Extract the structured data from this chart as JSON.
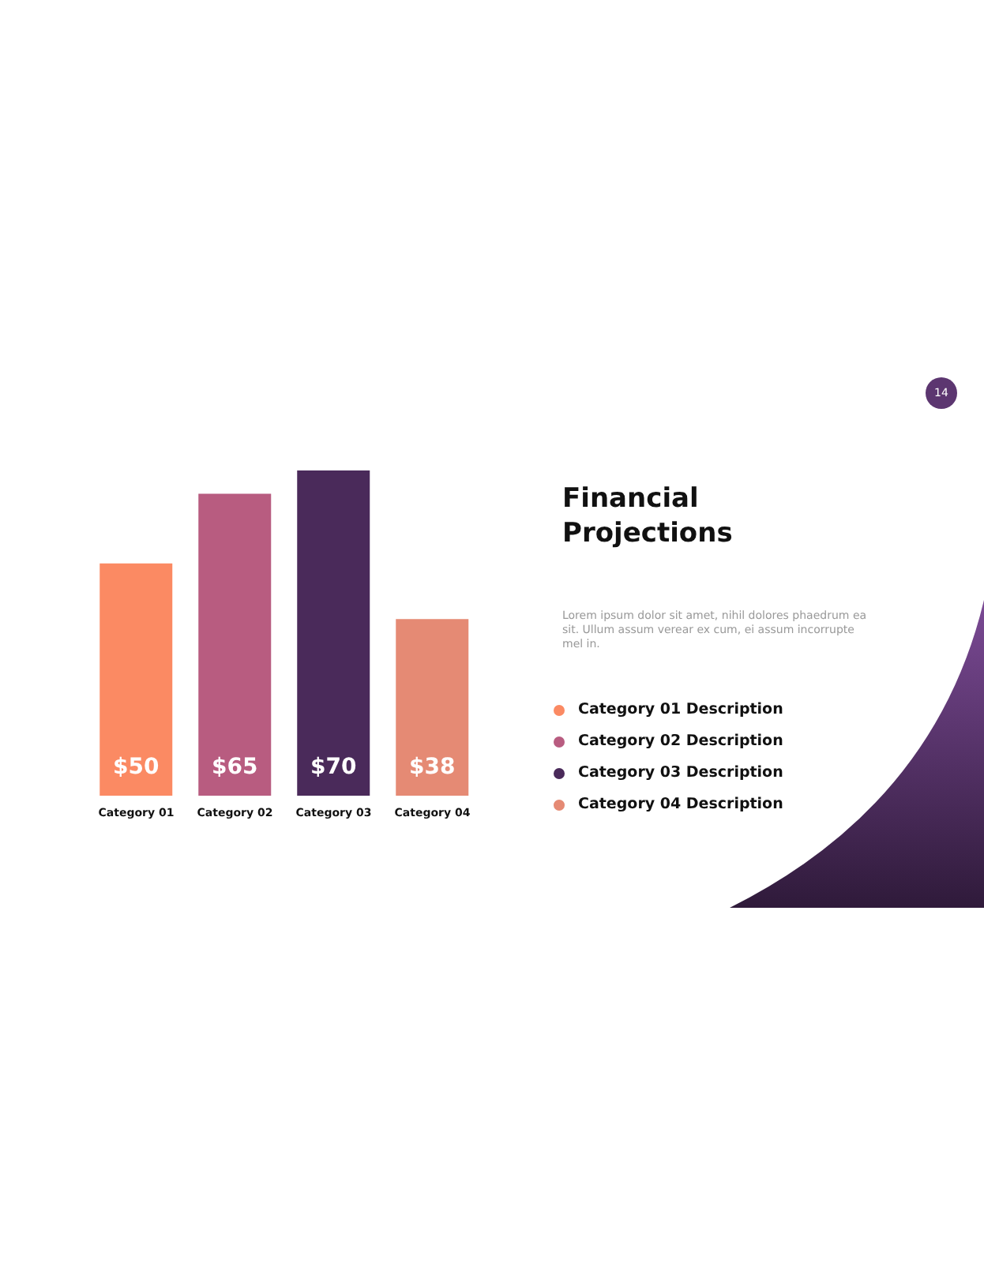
{
  "chart_data": {
    "type": "bar",
    "title": "Financial Projections",
    "subtitle": "Lorem ipsum dolor sit amet, nihil dolores phaedrum ea sit. Ullum assum verear ex cum, ei assum incorrupte mel in.",
    "categories": [
      "Category 01",
      "Category 02",
      "Category 03",
      "Category 04"
    ],
    "values": [
      50,
      65,
      70,
      38
    ],
    "value_labels": [
      "$50",
      "$65",
      "$70",
      "$38"
    ],
    "colors": [
      "#fb8a63",
      "#b85c80",
      "#4a2a5a",
      "#e58a74"
    ],
    "tick_labels": "x",
    "grid": false,
    "legend": false,
    "annotations": [
      "14",
      "Category 01 Description",
      "Category 02 Description",
      "Category 03 Description",
      "Category 04 Description"
    ]
  }
}
